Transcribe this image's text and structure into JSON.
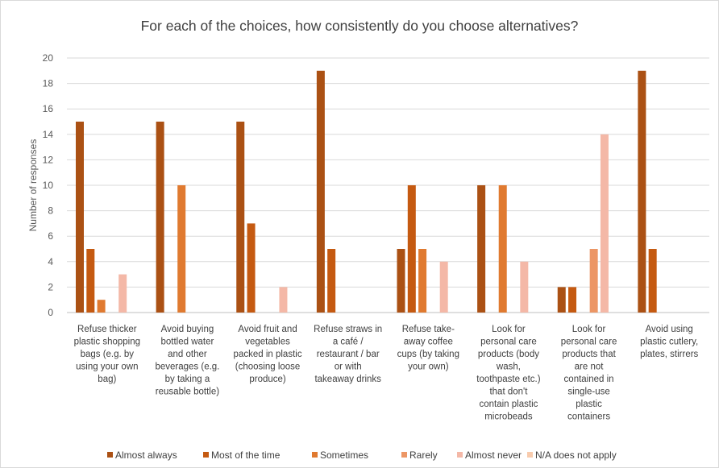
{
  "chart_data": {
    "type": "bar",
    "title": "For each of the choices, how consistently do you choose alternatives?",
    "xlabel": "",
    "ylabel": "Number of responses",
    "ylim": [
      0,
      20
    ],
    "yticks": [
      0,
      2,
      4,
      6,
      8,
      10,
      12,
      14,
      16,
      18,
      20
    ],
    "grid": true,
    "legend_position": "bottom",
    "categories": [
      [
        "Refuse thicker",
        "plastic shopping",
        "bags (e.g. by",
        "using your own",
        "bag)"
      ],
      [
        "Avoid buying",
        "bottled water",
        "and other",
        "beverages (e.g.",
        "by taking a",
        "reusable bottle)"
      ],
      [
        "Avoid fruit and",
        "vegetables",
        "packed in plastic",
        "(choosing loose",
        "produce)"
      ],
      [
        "Refuse straws in",
        "a café /",
        "restaurant / bar",
        "or with",
        "takeaway drinks"
      ],
      [
        "Refuse take-",
        "away coffee",
        "cups (by taking",
        "your own)"
      ],
      [
        "Look for",
        "personal care",
        "products (body",
        "wash,",
        "toothpaste etc.)",
        "that don't",
        "contain plastic",
        "microbeads"
      ],
      [
        "Look for",
        "personal care",
        "products that",
        "are not",
        "contained in",
        "single-use",
        "plastic",
        "containers"
      ],
      [
        "Avoid using",
        "plastic cutlery,",
        "plates, stirrers"
      ]
    ],
    "series": [
      {
        "name": "Almost always",
        "color": "#ab5114",
        "values": [
          15,
          15,
          15,
          19,
          5,
          10,
          2,
          19
        ]
      },
      {
        "name": "Most of the time",
        "color": "#c55a11",
        "values": [
          5,
          0,
          7,
          5,
          10,
          0,
          2,
          5
        ]
      },
      {
        "name": "Sometimes",
        "color": "#e07a30",
        "values": [
          1,
          10,
          0,
          0,
          5,
          10,
          0,
          0
        ]
      },
      {
        "name": "Rarely",
        "color": "#ec9665",
        "values": [
          0,
          0,
          0,
          0,
          0,
          0,
          5,
          0
        ]
      },
      {
        "name": "Almost never",
        "color": "#f4b8a7",
        "values": [
          3,
          0,
          2,
          0,
          4,
          4,
          14,
          0
        ]
      },
      {
        "name": "N/A does not apply",
        "color": "#f8cbad",
        "values": [
          0,
          0,
          0,
          0,
          0,
          0,
          0,
          0
        ]
      }
    ]
  }
}
